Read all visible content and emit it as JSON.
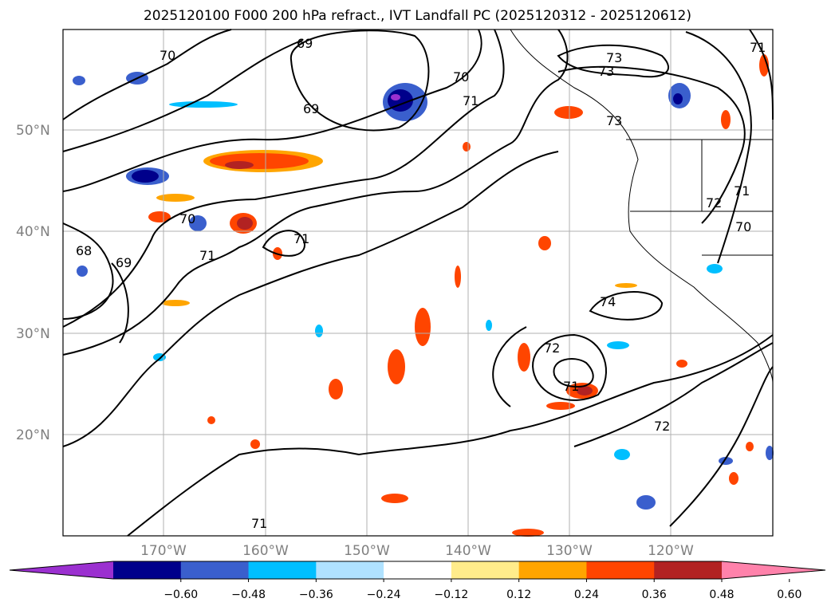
{
  "title": "2025120100 F000 200 hPa refract., IVT Landfall PC (2025120312 - 2025120612)",
  "map": {
    "lat_labels": [
      "50°N",
      "40°N",
      "30°N",
      "20°N"
    ],
    "lon_labels": [
      "170°W",
      "160°W",
      "150°W",
      "140°W",
      "130°W",
      "120°W"
    ],
    "contour_labels": [
      "70",
      "69",
      "70",
      "71",
      "73",
      "73",
      "71",
      "69",
      "73",
      "70",
      "71",
      "68",
      "69",
      "71",
      "72",
      "71",
      "70",
      "74",
      "72",
      "71",
      "72",
      "71"
    ]
  },
  "colorbar": {
    "ticks": [
      "−0.60",
      "−0.48",
      "−0.36",
      "−0.24",
      "−0.12",
      "0.12",
      "0.24",
      "0.36",
      "0.48",
      "0.60"
    ],
    "colors": [
      "#9b30d0",
      "#00008b",
      "#3a5fcd",
      "#00bfff",
      "#b0e2ff",
      "#ffffff",
      "#ffec8b",
      "#ffa500",
      "#ff4500",
      "#b22222",
      "#ff82ab"
    ]
  }
}
